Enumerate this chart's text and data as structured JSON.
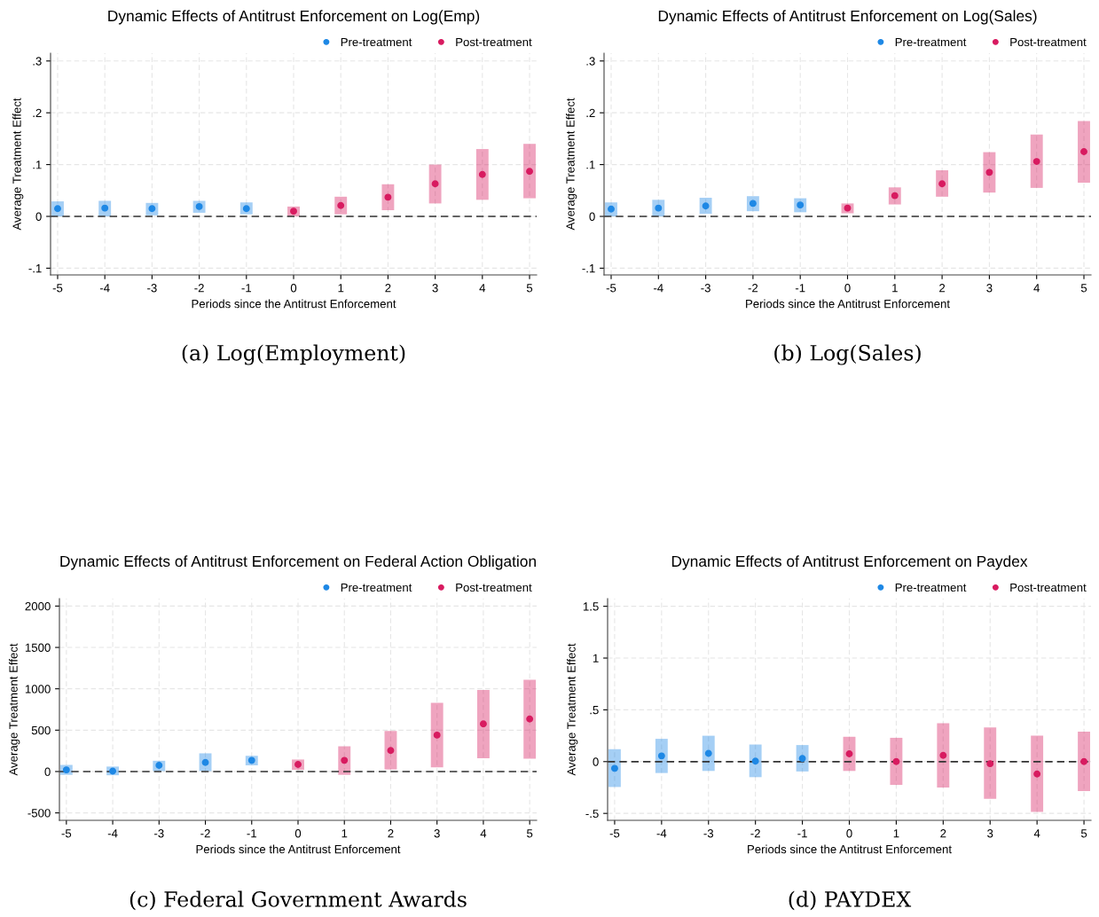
{
  "chart_data": [
    {
      "type": "scatter",
      "title": "Dynamic Effects of Antitrust Enforcement on Log(Emp)",
      "xlabel": "Periods since the Antitrust Enforcement",
      "ylabel": "Average Treatment Effect",
      "annotations": [
        "(a) Log(Employment)"
      ],
      "xlim": [
        -5.15,
        5.15
      ],
      "xticks": [
        -5,
        -4,
        -3,
        -2,
        -1,
        0,
        1,
        2,
        3,
        4,
        5
      ],
      "ylim": [
        -0.113,
        0.315
      ],
      "yticks": [
        {
          "value": 0.3,
          "label": ".3"
        },
        {
          "value": 0.2,
          "label": ".2"
        },
        {
          "value": 0.1,
          "label": ".1"
        },
        0,
        {
          "value": -0.1,
          "label": "-.1"
        }
      ],
      "grid": true,
      "legend": "top right",
      "marker": "circle",
      "ref_lines": [
        {
          "axis": "y",
          "value": 0,
          "line_style": "dashed",
          "color": "#333333"
        }
      ],
      "series": [
        {
          "name": "Pre-treatment",
          "color": "#1e88e5",
          "x": [
            -5,
            -4,
            -3,
            -2,
            -1
          ],
          "values": [
            0.015,
            0.016,
            0.015,
            0.019,
            0.015
          ],
          "errors": [
            [
              0.0,
              0.029
            ],
            [
              0.0,
              0.03
            ],
            [
              0.002,
              0.026
            ],
            [
              0.007,
              0.03
            ],
            [
              0.004,
              0.027
            ]
          ]
        },
        {
          "name": "Post-treatment",
          "color": "#d81b60",
          "x": [
            0,
            1,
            2,
            3,
            4,
            5
          ],
          "values": [
            0.01,
            0.021,
            0.037,
            0.063,
            0.081,
            0.087
          ],
          "errors": [
            [
              0.0,
              0.019
            ],
            [
              0.004,
              0.038
            ],
            [
              0.012,
              0.062
            ],
            [
              0.025,
              0.1
            ],
            [
              0.032,
              0.13
            ],
            [
              0.035,
              0.14
            ]
          ]
        }
      ]
    },
    {
      "type": "scatter",
      "title": "Dynamic Effects of Antitrust Enforcement on Log(Sales)",
      "xlabel": "Periods since the Antitrust Enforcement",
      "ylabel": "Average Treatment Effect",
      "annotations": [
        "(b) Log(Sales)"
      ],
      "xlim": [
        -5.15,
        5.15
      ],
      "xticks": [
        -5,
        -4,
        -3,
        -2,
        -1,
        0,
        1,
        2,
        3,
        4,
        5
      ],
      "ylim": [
        -0.113,
        0.315
      ],
      "yticks": [
        {
          "value": 0.3,
          "label": ".3"
        },
        {
          "value": 0.2,
          "label": ".2"
        },
        {
          "value": 0.1,
          "label": ".1"
        },
        0,
        {
          "value": -0.1,
          "label": "-.1"
        }
      ],
      "grid": true,
      "legend": "top right",
      "marker": "circle",
      "ref_lines": [
        {
          "axis": "y",
          "value": 0,
          "line_style": "dashed",
          "color": "#333333"
        }
      ],
      "series": [
        {
          "name": "Pre-treatment",
          "color": "#1e88e5",
          "x": [
            -5,
            -4,
            -3,
            -2,
            -1
          ],
          "values": [
            0.014,
            0.016,
            0.02,
            0.025,
            0.022
          ],
          "errors": [
            [
              0.0,
              0.027
            ],
            [
              0.0,
              0.032
            ],
            [
              0.005,
              0.036
            ],
            [
              0.01,
              0.039
            ],
            [
              0.008,
              0.035
            ]
          ]
        },
        {
          "name": "Post-treatment",
          "color": "#d81b60",
          "x": [
            0,
            1,
            2,
            3,
            4,
            5
          ],
          "values": [
            0.016,
            0.04,
            0.063,
            0.085,
            0.106,
            0.125
          ],
          "errors": [
            [
              0.006,
              0.025
            ],
            [
              0.023,
              0.056
            ],
            [
              0.038,
              0.089
            ],
            [
              0.046,
              0.124
            ],
            [
              0.055,
              0.158
            ],
            [
              0.065,
              0.184
            ]
          ]
        }
      ]
    },
    {
      "type": "scatter",
      "title": "Dynamic Effects of Antitrust Enforcement on Federal Action Obligation",
      "xlabel": "Periods since the Antitrust Enforcement",
      "ylabel": "Average Treatment Effect",
      "annotations": [
        "(c) Federal Government Awards"
      ],
      "xlim": [
        -5.15,
        5.15
      ],
      "xticks": [
        -5,
        -4,
        -3,
        -2,
        -1,
        0,
        1,
        2,
        3,
        4,
        5
      ],
      "ylim": [
        -590,
        2090
      ],
      "yticks": [
        2000,
        1500,
        1000,
        500,
        0,
        -500
      ],
      "grid": true,
      "legend": "top right",
      "marker": "circle",
      "ref_lines": [
        {
          "axis": "y",
          "value": 0,
          "line_style": "dashed",
          "color": "#333333"
        }
      ],
      "series": [
        {
          "name": "Pre-treatment",
          "color": "#1e88e5",
          "x": [
            -5,
            -4,
            -3,
            -2,
            -1
          ],
          "values": [
            20,
            5,
            75,
            110,
            135
          ],
          "errors": [
            [
              -40,
              80
            ],
            [
              -45,
              60
            ],
            [
              5,
              130
            ],
            [
              5,
              220
            ],
            [
              75,
              190
            ]
          ]
        },
        {
          "name": "Post-treatment",
          "color": "#d81b60",
          "x": [
            0,
            1,
            2,
            3,
            4,
            5
          ],
          "values": [
            85,
            135,
            255,
            440,
            575,
            635
          ],
          "errors": [
            [
              20,
              145
            ],
            [
              -40,
              305
            ],
            [
              25,
              490
            ],
            [
              50,
              830
            ],
            [
              160,
              985
            ],
            [
              155,
              1110
            ]
          ]
        }
      ]
    },
    {
      "type": "scatter",
      "title": "Dynamic Effects of Antitrust Enforcement on Paydex",
      "xlabel": "Periods since the Antitrust Enforcement",
      "ylabel": "Average Treatment Effect",
      "annotations": [
        "(d) PAYDEX"
      ],
      "xlim": [
        -5.15,
        5.15
      ],
      "xticks": [
        -5,
        -4,
        -3,
        -2,
        -1,
        0,
        1,
        2,
        3,
        4,
        5
      ],
      "ylim": [
        -0.567,
        1.574
      ],
      "yticks": [
        1.5,
        1,
        {
          "value": 0.5,
          "label": ".5"
        },
        0,
        {
          "value": -0.5,
          "label": "-.5"
        }
      ],
      "grid": true,
      "legend": "top right",
      "marker": "circle",
      "ref_lines": [
        {
          "axis": "y",
          "value": 0,
          "line_style": "dashed",
          "color": "#333333"
        }
      ],
      "series": [
        {
          "name": "Pre-treatment",
          "color": "#1e88e5",
          "x": [
            -5,
            -4,
            -3,
            -2,
            -1
          ],
          "values": [
            -0.065,
            0.055,
            0.08,
            0.005,
            0.03
          ],
          "errors": [
            [
              -0.245,
              0.12
            ],
            [
              -0.11,
              0.22
            ],
            [
              -0.09,
              0.25
            ],
            [
              -0.15,
              0.165
            ],
            [
              -0.095,
              0.16
            ]
          ]
        },
        {
          "name": "Post-treatment",
          "color": "#d81b60",
          "x": [
            0,
            1,
            2,
            3,
            4,
            5
          ],
          "values": [
            0.075,
            0.0,
            0.06,
            -0.02,
            -0.12,
            0.0
          ],
          "errors": [
            [
              -0.09,
              0.24
            ],
            [
              -0.225,
              0.23
            ],
            [
              -0.25,
              0.37
            ],
            [
              -0.36,
              0.33
            ],
            [
              -0.485,
              0.25
            ],
            [
              -0.285,
              0.29
            ]
          ]
        }
      ]
    }
  ]
}
